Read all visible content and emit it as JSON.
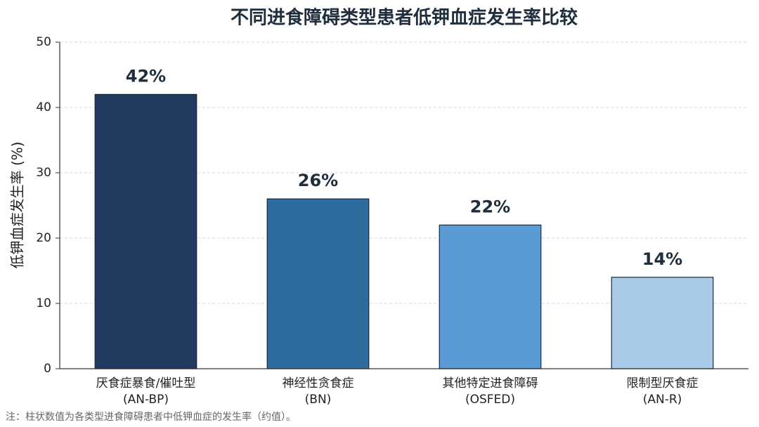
{
  "chart_data": {
    "type": "bar",
    "title": "不同进食障碍类型患者低钾血症发生率比较",
    "y_label": "低钾血症发生率 (%)",
    "categories": [
      [
        "厌食症暴食/催吐型",
        "(AN-BP)"
      ],
      [
        "神经性贪食症",
        "(BN)"
      ],
      [
        "其他特定进食障碍",
        "(OSFED)"
      ],
      [
        "限制型厌食症",
        "(AN-R)"
      ]
    ],
    "values": [
      42,
      26,
      22,
      14
    ],
    "value_labels": [
      "42%",
      "26%",
      "22%",
      "14%"
    ],
    "colors": [
      "#1f3a5c",
      "#2e6b9e",
      "#5b9bd5",
      "#a9cbe8"
    ],
    "ylim": [
      0,
      50
    ],
    "yticks": [
      0,
      10,
      20,
      30,
      40,
      50
    ],
    "grid": true,
    "note": "注：柱状数值为各类型进食障碍患者中低钾血症的发生率（约值）。"
  }
}
